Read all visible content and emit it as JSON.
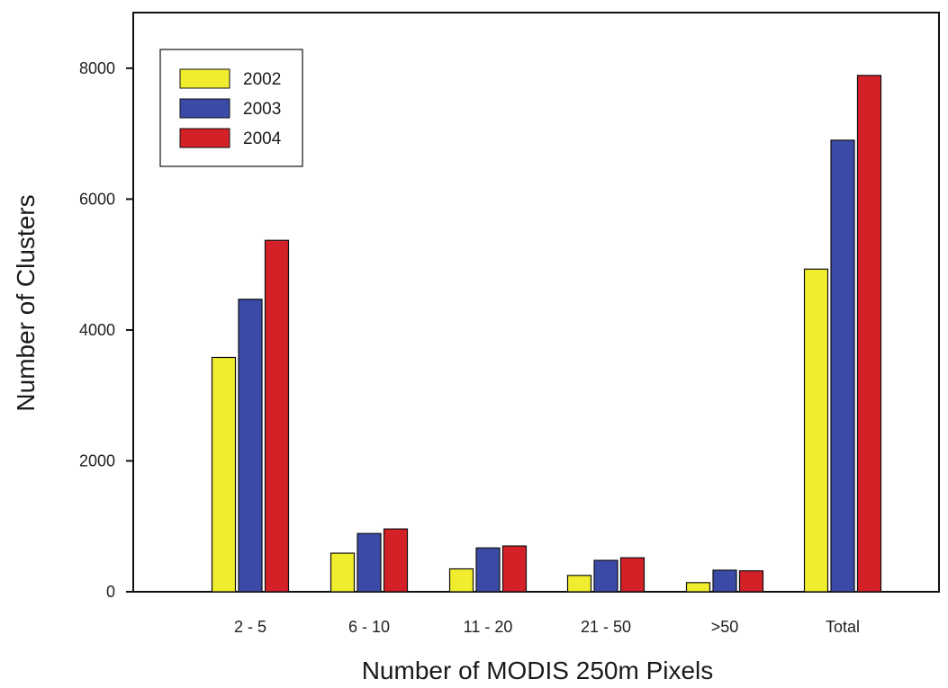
{
  "chart_data": {
    "type": "bar",
    "title": "",
    "xlabel": "Number of MODIS 250m Pixels",
    "ylabel": "Number of Clusters",
    "categories": [
      "2 - 5",
      "6 - 10",
      "11 - 20",
      "21 - 50",
      ">50",
      "Total"
    ],
    "yticks": [
      0,
      2000,
      4000,
      6000,
      8000
    ],
    "ylim": [
      0,
      8850
    ],
    "grid": false,
    "legend_position": "top-left",
    "series": [
      {
        "name": "2002",
        "color": "#f0ec2e",
        "values": [
          3580,
          590,
          350,
          250,
          140,
          4930
        ]
      },
      {
        "name": "2003",
        "color": "#3a4aa6",
        "values": [
          4470,
          890,
          670,
          480,
          330,
          6900
        ]
      },
      {
        "name": "2004",
        "color": "#d42027",
        "values": [
          5370,
          960,
          700,
          520,
          320,
          7890
        ]
      }
    ]
  }
}
